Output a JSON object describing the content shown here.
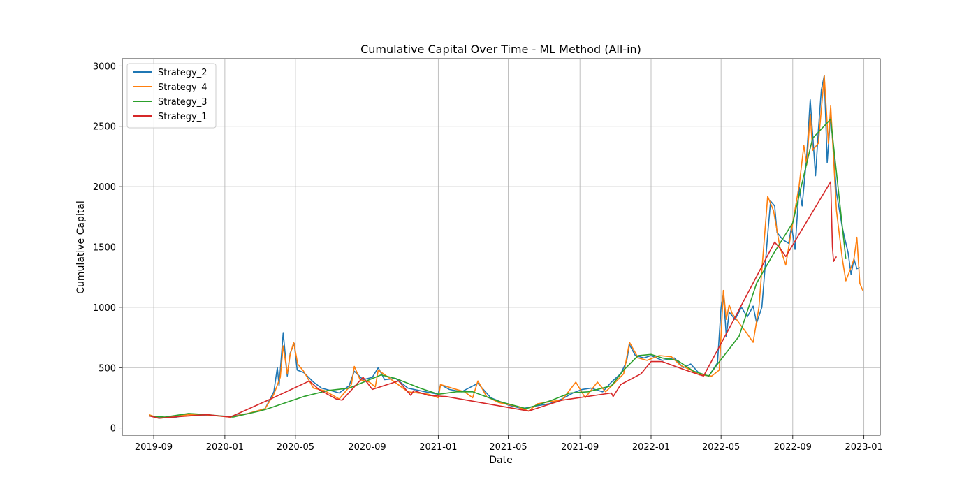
{
  "chart_data": {
    "type": "line",
    "title": "Cumulative Capital Over Time - ML Method (All-in)",
    "xlabel": "Date",
    "ylabel": "Cumulative Capital",
    "x_ticks": [
      "2019-09",
      "2020-01",
      "2020-05",
      "2020-09",
      "2021-01",
      "2021-05",
      "2021-09",
      "2022-01",
      "2022-05",
      "2022-09",
      "2023-01"
    ],
    "y_ticks": [
      0,
      500,
      1000,
      1500,
      2000,
      2500,
      3000
    ],
    "xlim": [
      "2019-07-09",
      "2023-01-29"
    ],
    "ylim": [
      -60,
      3060
    ],
    "grid": true,
    "legend_position": "top-left",
    "series": [
      {
        "name": "Strategy_2",
        "color": "#1f77b4",
        "points": [
          [
            "2019-08-24",
            100
          ],
          [
            "2019-09-10",
            85
          ],
          [
            "2019-10-10",
            90
          ],
          [
            "2019-10-31",
            115
          ],
          [
            "2019-12-01",
            105
          ],
          [
            "2020-01-10",
            95
          ],
          [
            "2020-02-10",
            120
          ],
          [
            "2020-03-10",
            160
          ],
          [
            "2020-03-25",
            300
          ],
          [
            "2020-03-31",
            500
          ],
          [
            "2020-04-03",
            350
          ],
          [
            "2020-04-10",
            790
          ],
          [
            "2020-04-17",
            430
          ],
          [
            "2020-04-22",
            620
          ],
          [
            "2020-04-29",
            700
          ],
          [
            "2020-05-04",
            480
          ],
          [
            "2020-05-15",
            460
          ],
          [
            "2020-06-01",
            380
          ],
          [
            "2020-06-15",
            330
          ],
          [
            "2020-07-01",
            310
          ],
          [
            "2020-07-15",
            290
          ],
          [
            "2020-08-01",
            350
          ],
          [
            "2020-08-10",
            470
          ],
          [
            "2020-08-25",
            400
          ],
          [
            "2020-09-10",
            420
          ],
          [
            "2020-09-20",
            500
          ],
          [
            "2020-10-01",
            400
          ],
          [
            "2020-10-20",
            410
          ],
          [
            "2020-11-10",
            330
          ],
          [
            "2020-12-10",
            300
          ],
          [
            "2021-01-01",
            280
          ],
          [
            "2021-01-05",
            360
          ],
          [
            "2021-01-20",
            320
          ],
          [
            "2021-02-10",
            300
          ],
          [
            "2021-03-10",
            370
          ],
          [
            "2021-04-01",
            250
          ],
          [
            "2021-05-01",
            190
          ],
          [
            "2021-05-25",
            160
          ],
          [
            "2021-06-15",
            180
          ],
          [
            "2021-07-10",
            200
          ],
          [
            "2021-08-01",
            240
          ],
          [
            "2021-08-20",
            290
          ],
          [
            "2021-09-05",
            320
          ],
          [
            "2021-09-20",
            330
          ],
          [
            "2021-10-10",
            300
          ],
          [
            "2021-10-25",
            380
          ],
          [
            "2021-11-10",
            450
          ],
          [
            "2021-11-20",
            550
          ],
          [
            "2021-11-25",
            690
          ],
          [
            "2021-12-05",
            600
          ],
          [
            "2021-12-20",
            580
          ],
          [
            "2022-01-01",
            600
          ],
          [
            "2022-01-20",
            560
          ],
          [
            "2022-02-10",
            580
          ],
          [
            "2022-02-25",
            500
          ],
          [
            "2022-03-10",
            530
          ],
          [
            "2022-03-25",
            450
          ],
          [
            "2022-04-10",
            430
          ],
          [
            "2022-04-25",
            540
          ],
          [
            "2022-05-01",
            1000
          ],
          [
            "2022-05-05",
            1110
          ],
          [
            "2022-05-10",
            760
          ],
          [
            "2022-05-15",
            960
          ],
          [
            "2022-05-25",
            900
          ],
          [
            "2022-06-05",
            1000
          ],
          [
            "2022-06-15",
            920
          ],
          [
            "2022-06-25",
            1010
          ],
          [
            "2022-07-01",
            870
          ],
          [
            "2022-07-10",
            1000
          ],
          [
            "2022-07-20",
            1600
          ],
          [
            "2022-07-25",
            1880
          ],
          [
            "2022-08-01",
            1840
          ],
          [
            "2022-08-05",
            1620
          ],
          [
            "2022-08-15",
            1560
          ],
          [
            "2022-08-25",
            1530
          ],
          [
            "2022-08-30",
            1670
          ],
          [
            "2022-09-05",
            1480
          ],
          [
            "2022-09-12",
            2000
          ],
          [
            "2022-09-17",
            1840
          ],
          [
            "2022-09-25",
            2250
          ],
          [
            "2022-10-01",
            2720
          ],
          [
            "2022-10-10",
            2090
          ],
          [
            "2022-10-15",
            2470
          ],
          [
            "2022-10-20",
            2800
          ],
          [
            "2022-10-25",
            2920
          ],
          [
            "2022-10-30",
            2200
          ],
          [
            "2022-11-05",
            2600
          ],
          [
            "2022-11-15",
            1950
          ],
          [
            "2022-11-25",
            1660
          ],
          [
            "2022-12-05",
            1450
          ],
          [
            "2022-12-10",
            1270
          ],
          [
            "2022-12-15",
            1400
          ],
          [
            "2022-12-20",
            1320
          ],
          [
            "2022-12-25",
            1330
          ]
        ]
      },
      {
        "name": "Strategy_4",
        "color": "#ff7f0e",
        "points": [
          [
            "2019-08-24",
            110
          ],
          [
            "2019-09-10",
            80
          ],
          [
            "2019-10-10",
            95
          ],
          [
            "2019-10-31",
            110
          ],
          [
            "2019-12-01",
            108
          ],
          [
            "2020-01-10",
            90
          ],
          [
            "2020-02-10",
            120
          ],
          [
            "2020-03-10",
            160
          ],
          [
            "2020-03-25",
            280
          ],
          [
            "2020-04-05",
            420
          ],
          [
            "2020-04-10",
            680
          ],
          [
            "2020-04-17",
            450
          ],
          [
            "2020-04-22",
            610
          ],
          [
            "2020-04-28",
            710
          ],
          [
            "2020-05-05",
            530
          ],
          [
            "2020-05-15",
            470
          ],
          [
            "2020-06-01",
            330
          ],
          [
            "2020-06-20",
            310
          ],
          [
            "2020-07-15",
            240
          ],
          [
            "2020-08-05",
            360
          ],
          [
            "2020-08-10",
            510
          ],
          [
            "2020-08-20",
            400
          ],
          [
            "2020-09-05",
            380
          ],
          [
            "2020-09-15",
            340
          ],
          [
            "2020-09-20",
            480
          ],
          [
            "2020-10-10",
            410
          ],
          [
            "2020-11-10",
            300
          ],
          [
            "2020-12-15",
            280
          ],
          [
            "2021-01-01",
            250
          ],
          [
            "2021-01-05",
            360
          ],
          [
            "2021-01-25",
            330
          ],
          [
            "2021-02-15",
            300
          ],
          [
            "2021-03-01",
            250
          ],
          [
            "2021-03-10",
            390
          ],
          [
            "2021-03-25",
            260
          ],
          [
            "2021-04-15",
            210
          ],
          [
            "2021-05-15",
            180
          ],
          [
            "2021-06-05",
            140
          ],
          [
            "2021-06-20",
            200
          ],
          [
            "2021-07-15",
            220
          ],
          [
            "2021-08-01",
            230
          ],
          [
            "2021-08-25",
            380
          ],
          [
            "2021-09-10",
            250
          ],
          [
            "2021-10-01",
            380
          ],
          [
            "2021-10-15",
            300
          ],
          [
            "2021-11-01",
            380
          ],
          [
            "2021-11-15",
            450
          ],
          [
            "2021-11-25",
            710
          ],
          [
            "2021-12-10",
            580
          ],
          [
            "2021-12-25",
            560
          ],
          [
            "2022-01-15",
            600
          ],
          [
            "2022-02-05",
            590
          ],
          [
            "2022-02-20",
            520
          ],
          [
            "2022-03-10",
            480
          ],
          [
            "2022-03-25",
            440
          ],
          [
            "2022-04-15",
            430
          ],
          [
            "2022-04-28",
            480
          ],
          [
            "2022-05-05",
            1140
          ],
          [
            "2022-05-10",
            900
          ],
          [
            "2022-05-15",
            1020
          ],
          [
            "2022-05-20",
            950
          ],
          [
            "2022-06-01",
            870
          ],
          [
            "2022-06-15",
            780
          ],
          [
            "2022-06-25",
            710
          ],
          [
            "2022-07-05",
            1000
          ],
          [
            "2022-07-20",
            1920
          ],
          [
            "2022-07-30",
            1800
          ],
          [
            "2022-08-10",
            1500
          ],
          [
            "2022-08-20",
            1350
          ],
          [
            "2022-09-01",
            1700
          ],
          [
            "2022-09-12",
            2010
          ],
          [
            "2022-09-20",
            2340
          ],
          [
            "2022-09-25",
            2180
          ],
          [
            "2022-10-01",
            2600
          ],
          [
            "2022-10-05",
            2300
          ],
          [
            "2022-10-15",
            2360
          ],
          [
            "2022-10-25",
            2920
          ],
          [
            "2022-11-01",
            2360
          ],
          [
            "2022-11-05",
            2670
          ],
          [
            "2022-11-15",
            1800
          ],
          [
            "2022-11-25",
            1400
          ],
          [
            "2022-12-01",
            1220
          ],
          [
            "2022-12-10",
            1330
          ],
          [
            "2022-12-15",
            1400
          ],
          [
            "2022-12-20",
            1580
          ],
          [
            "2022-12-25",
            1200
          ],
          [
            "2022-12-30",
            1140
          ]
        ]
      },
      {
        "name": "Strategy_3",
        "color": "#2ca02c",
        "points": [
          [
            "2019-08-24",
            100
          ],
          [
            "2019-09-20",
            90
          ],
          [
            "2019-10-31",
            120
          ],
          [
            "2019-12-01",
            110
          ],
          [
            "2020-01-15",
            90
          ],
          [
            "2020-03-01",
            140
          ],
          [
            "2020-03-15",
            160
          ],
          [
            "2020-05-15",
            260
          ],
          [
            "2020-06-25",
            310
          ],
          [
            "2020-08-01",
            330
          ],
          [
            "2020-09-25",
            440
          ],
          [
            "2020-10-20",
            410
          ],
          [
            "2020-12-01",
            330
          ],
          [
            "2021-01-01",
            280
          ],
          [
            "2021-02-01",
            300
          ],
          [
            "2021-03-01",
            300
          ],
          [
            "2021-04-15",
            220
          ],
          [
            "2021-06-01",
            160
          ],
          [
            "2021-07-15",
            230
          ],
          [
            "2021-08-15",
            290
          ],
          [
            "2021-09-15",
            300
          ],
          [
            "2021-10-25",
            350
          ],
          [
            "2021-11-15",
            480
          ],
          [
            "2021-12-10",
            600
          ],
          [
            "2022-01-01",
            610
          ],
          [
            "2022-01-20",
            580
          ],
          [
            "2022-02-15",
            560
          ],
          [
            "2022-03-15",
            470
          ],
          [
            "2022-04-10",
            430
          ],
          [
            "2022-04-25",
            530
          ],
          [
            "2022-06-01",
            760
          ],
          [
            "2022-07-01",
            1200
          ],
          [
            "2022-08-01",
            1460
          ],
          [
            "2022-09-01",
            1700
          ],
          [
            "2022-10-05",
            2400
          ],
          [
            "2022-11-05",
            2560
          ],
          [
            "2022-12-01",
            1400
          ]
        ]
      },
      {
        "name": "Strategy_1",
        "color": "#d62728",
        "points": [
          [
            "2019-08-24",
            100
          ],
          [
            "2019-09-10",
            80
          ],
          [
            "2019-09-20",
            85
          ],
          [
            "2019-10-31",
            100
          ],
          [
            "2019-12-01",
            110
          ],
          [
            "2020-01-10",
            90
          ],
          [
            "2020-03-15",
            230
          ],
          [
            "2020-05-25",
            390
          ],
          [
            "2020-06-10",
            320
          ],
          [
            "2020-07-10",
            240
          ],
          [
            "2020-07-20",
            230
          ],
          [
            "2020-08-25",
            420
          ],
          [
            "2020-09-10",
            320
          ],
          [
            "2020-10-25",
            390
          ],
          [
            "2020-11-15",
            270
          ],
          [
            "2020-11-20",
            310
          ],
          [
            "2020-12-15",
            270
          ],
          [
            "2021-01-15",
            260
          ],
          [
            "2021-06-05",
            140
          ],
          [
            "2021-08-01",
            230
          ],
          [
            "2021-10-25",
            290
          ],
          [
            "2021-10-28",
            260
          ],
          [
            "2021-11-10",
            360
          ],
          [
            "2021-12-15",
            450
          ],
          [
            "2022-01-01",
            550
          ],
          [
            "2022-01-20",
            550
          ],
          [
            "2022-03-01",
            480
          ],
          [
            "2022-04-01",
            430
          ],
          [
            "2022-05-20",
            870
          ],
          [
            "2022-08-01",
            1540
          ],
          [
            "2022-08-10",
            1490
          ],
          [
            "2022-08-20",
            1420
          ],
          [
            "2022-11-05",
            2040
          ],
          [
            "2022-11-08",
            1500
          ],
          [
            "2022-11-10",
            1380
          ],
          [
            "2022-11-15",
            1420
          ]
        ]
      }
    ]
  }
}
